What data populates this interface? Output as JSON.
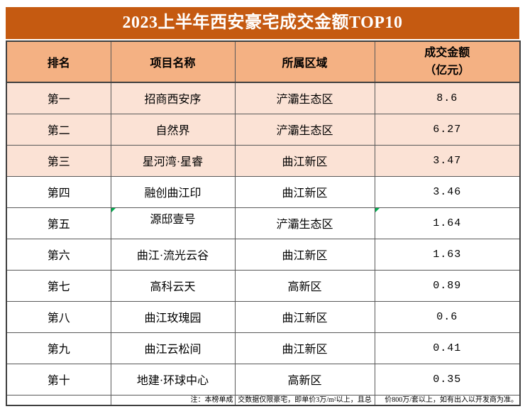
{
  "title": "2023上半年西安豪宅成交金额TOP10",
  "columns": {
    "rank": "排名",
    "project": "项目名称",
    "district": "所属区域",
    "amount_line1": "成交金额",
    "amount_line2": "（亿元）"
  },
  "rows": [
    {
      "rank": "第一",
      "project": "招商西安序",
      "district": "浐灞生态区",
      "amount": "8.6",
      "shaded": true
    },
    {
      "rank": "第二",
      "project": "自然界",
      "district": "浐灞生态区",
      "amount": "6.27",
      "shaded": true
    },
    {
      "rank": "第三",
      "project": "星河湾·星睿",
      "district": "曲江新区",
      "amount": "3.47",
      "shaded": true
    },
    {
      "rank": "第四",
      "project": "融创曲江印",
      "district": "曲江新区",
      "amount": "3.46",
      "shaded": false
    },
    {
      "rank": "第五",
      "project": "源邸壹号",
      "district": "浐灞生态区",
      "amount": "1.64",
      "shaded": false,
      "green_triangles": [
        "project",
        "amount"
      ],
      "project_raised": true
    },
    {
      "rank": "第六",
      "project": "曲江·流光云谷",
      "district": "曲江新区",
      "amount": "1.63",
      "shaded": false
    },
    {
      "rank": "第七",
      "project": "高科云天",
      "district": "高新区",
      "amount": "0.89",
      "shaded": false
    },
    {
      "rank": "第八",
      "project": "曲江玫瑰园",
      "district": "曲江新区",
      "amount": "0.6",
      "shaded": false
    },
    {
      "rank": "第九",
      "project": "曲江云松间",
      "district": "曲江新区",
      "amount": "0.41",
      "shaded": false
    },
    {
      "rank": "第十",
      "project": "地建·环球中心",
      "district": "高新区",
      "amount": "0.35",
      "shaded": false
    }
  ],
  "footnote": {
    "part1": "注：本榜单成",
    "part2": "交数据仅限豪宅，即单价3万/m²以上，且总",
    "part3": "价800万/套以上，如有出入以开发商为准。"
  },
  "colors": {
    "title_bg": "#C55A11",
    "header_bg": "#F4B183",
    "row_shaded_bg": "#FBE2D5",
    "border": "#595959",
    "outer_border": "#3F3F3F",
    "green_indicator": "#00B050"
  }
}
